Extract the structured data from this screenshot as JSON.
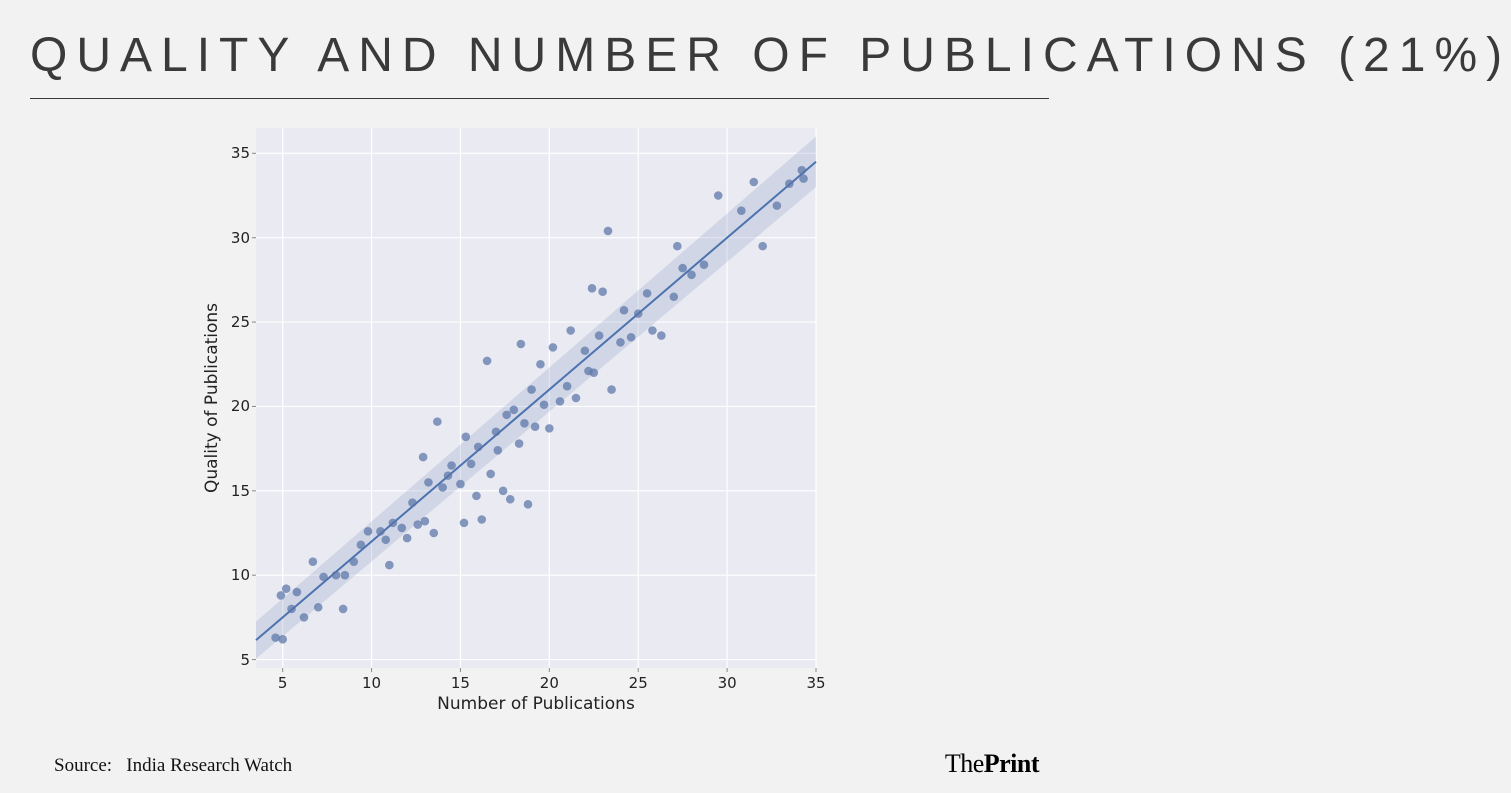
{
  "title": "QUALITY AND NUMBER OF PUBLICATIONS (21%)",
  "chart": {
    "type": "scatter-regression",
    "xlabel": "Number of Publications",
    "ylabel": "Quality of Publications",
    "xlim": [
      3.5,
      35
    ],
    "ylim": [
      4.5,
      36.5
    ],
    "xtick_start": 5,
    "xtick_step": 5,
    "xtick_end": 35,
    "ytick_start": 5,
    "ytick_step": 5,
    "ytick_end": 35,
    "background_color": "#eaeaf2",
    "grid_color": "#ffffff",
    "grid_width": 1.2,
    "tick_color": "#8a8a8a",
    "tick_len": 4,
    "label_fontsize": 17,
    "tick_fontsize": 15,
    "marker_color": "#5a74a8",
    "marker_opacity": 0.72,
    "marker_radius": 4.3,
    "line_color": "#4c72b0",
    "line_width": 2.0,
    "band_color": "#8ea0c8",
    "band_opacity": 0.28,
    "regression": {
      "slope": 0.9,
      "intercept": 3.0
    },
    "band_half_width": {
      "at_xmin": 1.1,
      "at_xmax": 1.5
    },
    "points": [
      [
        4.6,
        6.3
      ],
      [
        4.9,
        8.8
      ],
      [
        5.0,
        6.2
      ],
      [
        5.2,
        9.2
      ],
      [
        5.5,
        8.0
      ],
      [
        5.8,
        9.0
      ],
      [
        6.2,
        7.5
      ],
      [
        6.7,
        10.8
      ],
      [
        7.0,
        8.1
      ],
      [
        7.3,
        9.9
      ],
      [
        8.0,
        10.0
      ],
      [
        8.4,
        8.0
      ],
      [
        8.5,
        10.0
      ],
      [
        9.0,
        10.8
      ],
      [
        9.4,
        11.8
      ],
      [
        9.8,
        12.6
      ],
      [
        10.5,
        12.6
      ],
      [
        10.8,
        12.1
      ],
      [
        11.0,
        10.6
      ],
      [
        11.2,
        13.1
      ],
      [
        11.7,
        12.8
      ],
      [
        12.0,
        12.2
      ],
      [
        12.3,
        14.3
      ],
      [
        12.6,
        13.0
      ],
      [
        12.9,
        17.0
      ],
      [
        13.0,
        13.2
      ],
      [
        13.2,
        15.5
      ],
      [
        13.5,
        12.5
      ],
      [
        13.7,
        19.1
      ],
      [
        14.0,
        15.2
      ],
      [
        14.3,
        15.9
      ],
      [
        14.5,
        16.5
      ],
      [
        15.0,
        15.4
      ],
      [
        15.2,
        13.1
      ],
      [
        15.3,
        18.2
      ],
      [
        15.6,
        16.6
      ],
      [
        15.9,
        14.7
      ],
      [
        16.0,
        17.6
      ],
      [
        16.2,
        13.3
      ],
      [
        16.5,
        22.7
      ],
      [
        16.7,
        16.0
      ],
      [
        17.0,
        18.5
      ],
      [
        17.1,
        17.4
      ],
      [
        17.4,
        15.0
      ],
      [
        17.6,
        19.5
      ],
      [
        17.8,
        14.5
      ],
      [
        18.0,
        19.8
      ],
      [
        18.3,
        17.8
      ],
      [
        18.4,
        23.7
      ],
      [
        18.6,
        19.0
      ],
      [
        18.8,
        14.2
      ],
      [
        19.0,
        21.0
      ],
      [
        19.2,
        18.8
      ],
      [
        19.5,
        22.5
      ],
      [
        19.7,
        20.1
      ],
      [
        20.0,
        18.7
      ],
      [
        20.2,
        23.5
      ],
      [
        20.6,
        20.3
      ],
      [
        21.0,
        21.2
      ],
      [
        21.2,
        24.5
      ],
      [
        21.5,
        20.5
      ],
      [
        22.0,
        23.3
      ],
      [
        22.2,
        22.1
      ],
      [
        22.4,
        27.0
      ],
      [
        22.5,
        22.0
      ],
      [
        22.8,
        24.2
      ],
      [
        23.0,
        26.8
      ],
      [
        23.3,
        30.4
      ],
      [
        23.5,
        21.0
      ],
      [
        24.0,
        23.8
      ],
      [
        24.2,
        25.7
      ],
      [
        24.6,
        24.1
      ],
      [
        25.0,
        25.5
      ],
      [
        25.5,
        26.7
      ],
      [
        25.8,
        24.5
      ],
      [
        26.3,
        24.2
      ],
      [
        27.0,
        26.5
      ],
      [
        27.2,
        29.5
      ],
      [
        27.5,
        28.2
      ],
      [
        28.0,
        27.8
      ],
      [
        28.7,
        28.4
      ],
      [
        29.5,
        32.5
      ],
      [
        30.8,
        31.6
      ],
      [
        31.5,
        33.3
      ],
      [
        32.0,
        29.5
      ],
      [
        32.8,
        31.9
      ],
      [
        33.5,
        33.2
      ],
      [
        34.3,
        33.5
      ],
      [
        34.2,
        34.0
      ]
    ]
  },
  "source_label": "Source:",
  "source_value": "India Research Watch",
  "brand_thin": "The",
  "brand_bold": "Print"
}
